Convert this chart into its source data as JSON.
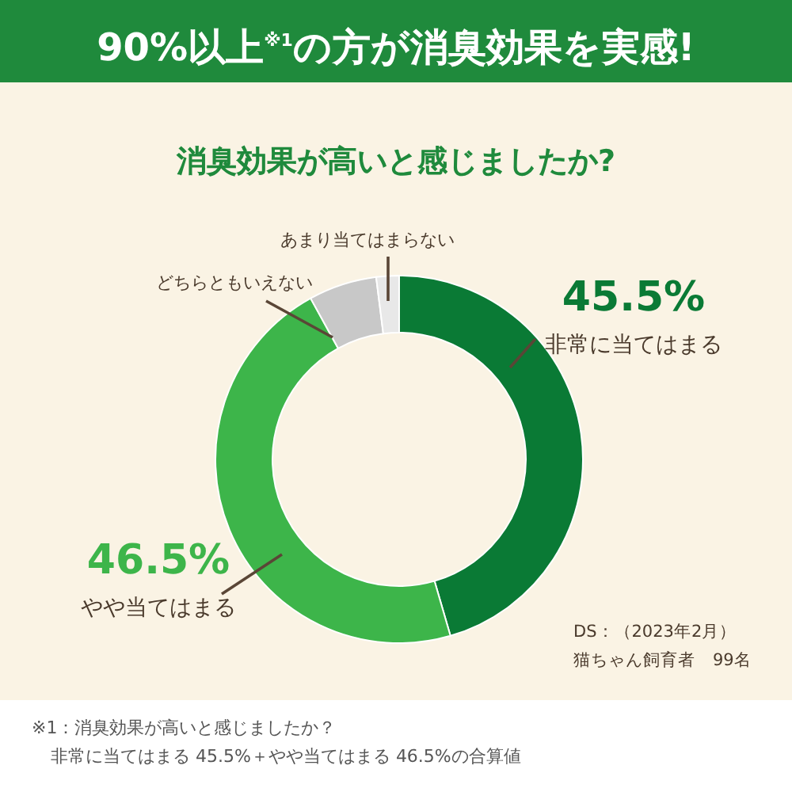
{
  "chart_data": {
    "type": "donut",
    "title": "90%以上$^{※1}$の方が消臭効果を実感!",
    "subtitle": "消臭効果が高いと感じましたか?",
    "categories": [
      "非常に当てはまる",
      "やや当てはまる",
      "どちらともいえない",
      "あまり当てはまらない"
    ],
    "values": [
      45.5,
      46.5,
      6,
      2
    ],
    "value_labels": [
      "45.5%",
      "46.5%",
      null,
      null
    ],
    "colors": [
      "#0a7a35",
      "#3db54a",
      "#c8c8c8",
      "#e8e8e8"
    ],
    "annotations": [
      "DS：（2023年2月）",
      "猫ちゃん飼育者　99名",
      "※1：消臭効果が高いと感じましたか？",
      "非常に当てはまる 45.5%＋やや当てはまる 46.5%の合算値"
    ],
    "data_labels": false
  }
}
